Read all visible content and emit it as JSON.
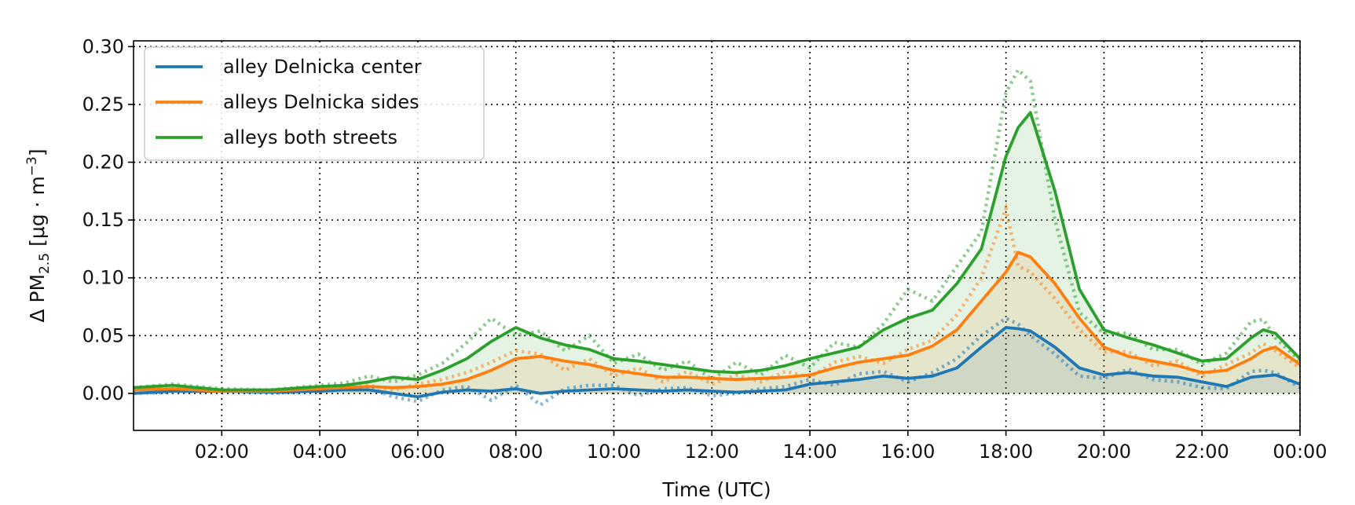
{
  "chart_data": {
    "type": "line",
    "title": "",
    "xlabel": "Time (UTC)",
    "ylabel_prefix": "Δ PM",
    "ylabel_sub": "2.5",
    "ylabel_unit_open": " [μg · m",
    "ylabel_sup": "−3",
    "ylabel_unit_close": "]",
    "xlim_hours": [
      0.2,
      24.0
    ],
    "ylim": [
      -0.032,
      0.305
    ],
    "x_ticks": [
      {
        "hour": 2,
        "label": "02:00"
      },
      {
        "hour": 4,
        "label": "04:00"
      },
      {
        "hour": 6,
        "label": "06:00"
      },
      {
        "hour": 8,
        "label": "08:00"
      },
      {
        "hour": 10,
        "label": "10:00"
      },
      {
        "hour": 12,
        "label": "12:00"
      },
      {
        "hour": 14,
        "label": "14:00"
      },
      {
        "hour": 16,
        "label": "16:00"
      },
      {
        "hour": 18,
        "label": "18:00"
      },
      {
        "hour": 20,
        "label": "20:00"
      },
      {
        "hour": 22,
        "label": "22:00"
      },
      {
        "hour": 24,
        "label": "00:00"
      }
    ],
    "y_ticks": [
      {
        "value": 0.0,
        "label": "0.00"
      },
      {
        "value": 0.05,
        "label": "0.05"
      },
      {
        "value": 0.1,
        "label": "0.10"
      },
      {
        "value": 0.15,
        "label": "0.15"
      },
      {
        "value": 0.2,
        "label": "0.20"
      },
      {
        "value": 0.25,
        "label": "0.25"
      },
      {
        "value": 0.3,
        "label": "0.30"
      }
    ],
    "grid": true,
    "legend_position": "top-left",
    "x_hours": [
      0.2,
      1,
      2,
      3,
      4,
      4.5,
      5,
      5.5,
      6,
      6.5,
      7,
      7.5,
      8,
      8.5,
      9,
      9.5,
      10,
      10.5,
      11,
      11.5,
      12,
      12.5,
      13,
      13.5,
      14,
      14.5,
      15,
      15.5,
      16,
      16.5,
      17,
      17.5,
      18,
      18.25,
      18.5,
      19,
      19.5,
      20,
      20.5,
      21,
      21.5,
      22,
      22.5,
      23,
      23.25,
      23.5,
      24
    ],
    "series": [
      {
        "name": "alley Delnicka center",
        "color": "#1f77b4",
        "smooth": [
          0.0,
          0.002,
          0.002,
          0.001,
          0.002,
          0.003,
          0.003,
          0.0,
          -0.003,
          0.001,
          0.003,
          0.002,
          0.004,
          0.0,
          0.002,
          0.003,
          0.004,
          0.003,
          0.002,
          0.003,
          0.002,
          0.001,
          0.002,
          0.003,
          0.008,
          0.01,
          0.012,
          0.015,
          0.013,
          0.015,
          0.022,
          0.04,
          0.057,
          0.056,
          0.054,
          0.04,
          0.022,
          0.016,
          0.018,
          0.015,
          0.014,
          0.01,
          0.006,
          0.014,
          0.015,
          0.016,
          0.008
        ],
        "raw": [
          0.0,
          0.001,
          0.003,
          0.0,
          0.002,
          0.004,
          0.005,
          -0.003,
          -0.007,
          0.003,
          0.006,
          -0.006,
          0.007,
          -0.01,
          0.004,
          0.007,
          0.007,
          -0.002,
          0.004,
          0.005,
          -0.002,
          0.0,
          0.004,
          0.006,
          0.012,
          0.007,
          0.017,
          0.019,
          0.01,
          0.018,
          0.03,
          0.05,
          0.065,
          0.06,
          0.05,
          0.034,
          0.015,
          0.013,
          0.021,
          0.012,
          0.01,
          0.005,
          0.004,
          0.019,
          0.02,
          0.018,
          0.005
        ]
      },
      {
        "name": "alleys Delnicka sides",
        "color": "#ff7f0e",
        "smooth": [
          0.003,
          0.004,
          0.002,
          0.002,
          0.004,
          0.005,
          0.006,
          0.005,
          0.006,
          0.008,
          0.012,
          0.02,
          0.03,
          0.032,
          0.028,
          0.025,
          0.02,
          0.017,
          0.014,
          0.014,
          0.013,
          0.012,
          0.013,
          0.014,
          0.016,
          0.022,
          0.027,
          0.03,
          0.033,
          0.041,
          0.055,
          0.08,
          0.105,
          0.122,
          0.118,
          0.095,
          0.065,
          0.04,
          0.032,
          0.028,
          0.024,
          0.018,
          0.02,
          0.03,
          0.037,
          0.04,
          0.025
        ],
        "raw": [
          0.003,
          0.005,
          0.003,
          0.002,
          0.005,
          0.006,
          0.007,
          0.003,
          0.008,
          0.012,
          0.018,
          0.027,
          0.037,
          0.034,
          0.02,
          0.03,
          0.015,
          0.022,
          0.01,
          0.019,
          0.008,
          0.016,
          0.01,
          0.019,
          0.014,
          0.027,
          0.032,
          0.026,
          0.038,
          0.046,
          0.068,
          0.1,
          0.16,
          0.11,
          0.105,
          0.082,
          0.055,
          0.036,
          0.036,
          0.024,
          0.028,
          0.015,
          0.025,
          0.035,
          0.043,
          0.037,
          0.022
        ]
      },
      {
        "name": "alleys both streets",
        "color": "#2ca02c",
        "smooth": [
          0.005,
          0.007,
          0.003,
          0.003,
          0.006,
          0.007,
          0.01,
          0.014,
          0.012,
          0.02,
          0.03,
          0.045,
          0.057,
          0.048,
          0.042,
          0.038,
          0.03,
          0.028,
          0.025,
          0.022,
          0.019,
          0.018,
          0.02,
          0.024,
          0.03,
          0.035,
          0.04,
          0.055,
          0.065,
          0.072,
          0.095,
          0.125,
          0.205,
          0.23,
          0.243,
          0.175,
          0.09,
          0.055,
          0.048,
          0.042,
          0.035,
          0.028,
          0.03,
          0.048,
          0.055,
          0.052,
          0.03
        ],
        "raw": [
          0.005,
          0.008,
          0.004,
          0.003,
          0.007,
          0.009,
          0.015,
          0.01,
          0.016,
          0.026,
          0.044,
          0.065,
          0.05,
          0.054,
          0.037,
          0.05,
          0.026,
          0.034,
          0.02,
          0.028,
          0.012,
          0.027,
          0.016,
          0.033,
          0.022,
          0.044,
          0.04,
          0.06,
          0.09,
          0.08,
          0.11,
          0.14,
          0.26,
          0.28,
          0.27,
          0.15,
          0.07,
          0.052,
          0.052,
          0.038,
          0.038,
          0.025,
          0.035,
          0.062,
          0.064,
          0.048,
          0.028
        ]
      }
    ]
  }
}
